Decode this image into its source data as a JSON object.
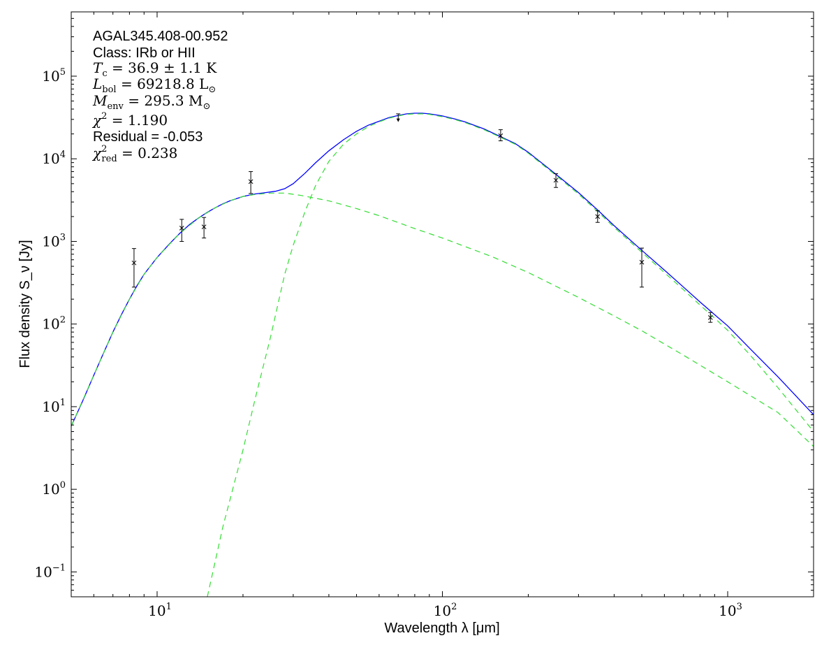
{
  "chart_data": {
    "type": "line",
    "title": "",
    "xlabel": "Wavelength λ [μm]",
    "ylabel": "Flux density S_ν [Jy]",
    "xscale": "log",
    "yscale": "log",
    "xlim": [
      5,
      2000
    ],
    "ylim": [
      0.05,
      600000
    ],
    "grid": false,
    "legend": "none",
    "x_ticks": [
      {
        "value": 10,
        "base": "10",
        "exp": "1"
      },
      {
        "value": 100,
        "base": "10",
        "exp": "2"
      },
      {
        "value": 1000,
        "base": "10",
        "exp": "3"
      }
    ],
    "y_ticks": [
      {
        "value": 0.1,
        "base": "10",
        "exp": "−1"
      },
      {
        "value": 1,
        "base": "10",
        "exp": "0"
      },
      {
        "value": 10,
        "base": "10",
        "exp": "1"
      },
      {
        "value": 100,
        "base": "10",
        "exp": "2"
      },
      {
        "value": 1000,
        "base": "10",
        "exp": "3"
      },
      {
        "value": 10000,
        "base": "10",
        "exp": "4"
      },
      {
        "value": 100000,
        "base": "10",
        "exp": "5"
      }
    ],
    "annotations": {
      "source": "AGAL345.408-00.952",
      "class_line": "Class: IRb or HII",
      "tc": {
        "sym": "T",
        "sub": "c",
        "rest": " = 36.9 ± 1.1 K"
      },
      "lbol": {
        "sym": "L",
        "sub": "bol",
        "rest": " = 69218.8 L",
        "unit_sub": "⊙"
      },
      "menv": {
        "sym": "M",
        "sub": "env",
        "rest": " = 295.3 M",
        "unit_sub": "⊙"
      },
      "chi2": {
        "sym": "χ",
        "sup": "2",
        "rest": " = 1.190"
      },
      "residual": "Residual = -0.053",
      "chi2red": {
        "sym": "χ",
        "sup": "2",
        "sub": "red",
        "rest": " = 0.238"
      }
    },
    "series": [
      {
        "role": "total-fit",
        "color": "#0000ff",
        "style": "solid",
        "points": [
          [
            5,
            5.8
          ],
          [
            5.5,
            12
          ],
          [
            6,
            24
          ],
          [
            6.5,
            45
          ],
          [
            7,
            80
          ],
          [
            7.5,
            130
          ],
          [
            8,
            200
          ],
          [
            8.5,
            290
          ],
          [
            9,
            400
          ],
          [
            10,
            640
          ],
          [
            11,
            920
          ],
          [
            12,
            1250
          ],
          [
            13,
            1600
          ],
          [
            14,
            1930
          ],
          [
            15,
            2250
          ],
          [
            16,
            2560
          ],
          [
            17,
            2850
          ],
          [
            18,
            3100
          ],
          [
            20,
            3500
          ],
          [
            22,
            3750
          ],
          [
            24,
            3900
          ],
          [
            26,
            4050
          ],
          [
            28,
            4350
          ],
          [
            30,
            5000
          ],
          [
            33,
            6700
          ],
          [
            36,
            9000
          ],
          [
            40,
            12500
          ],
          [
            45,
            17000
          ],
          [
            50,
            21500
          ],
          [
            55,
            25500
          ],
          [
            60,
            28500
          ],
          [
            65,
            31500
          ],
          [
            70,
            33500
          ],
          [
            75,
            35000
          ],
          [
            80,
            35600
          ],
          [
            85,
            35600
          ],
          [
            90,
            35000
          ],
          [
            100,
            33000
          ],
          [
            110,
            30500
          ],
          [
            120,
            28000
          ],
          [
            140,
            23000
          ],
          [
            160,
            18500
          ],
          [
            180,
            15300
          ],
          [
            200,
            12000
          ],
          [
            250,
            6500
          ],
          [
            300,
            3900
          ],
          [
            350,
            2400
          ],
          [
            400,
            1550
          ],
          [
            500,
            780
          ],
          [
            600,
            450
          ],
          [
            700,
            280
          ],
          [
            800,
            185
          ],
          [
            900,
            130
          ],
          [
            1000,
            95
          ],
          [
            1200,
            50
          ],
          [
            1500,
            23
          ],
          [
            2000,
            8
          ]
        ]
      },
      {
        "role": "warm-component",
        "color": "#33dd33",
        "style": "dashed",
        "points": [
          [
            5,
            5.8
          ],
          [
            6,
            24
          ],
          [
            7,
            80
          ],
          [
            8,
            200
          ],
          [
            9,
            400
          ],
          [
            10,
            640
          ],
          [
            12,
            1250
          ],
          [
            14,
            1930
          ],
          [
            16,
            2560
          ],
          [
            18,
            3100
          ],
          [
            20,
            3500
          ],
          [
            22,
            3700
          ],
          [
            25,
            3850
          ],
          [
            28,
            3850
          ],
          [
            32,
            3600
          ],
          [
            40,
            3100
          ],
          [
            50,
            2500
          ],
          [
            60,
            2050
          ],
          [
            80,
            1430
          ],
          [
            100,
            1100
          ],
          [
            150,
            650
          ],
          [
            200,
            420
          ],
          [
            300,
            210
          ],
          [
            400,
            125
          ],
          [
            500,
            83
          ],
          [
            700,
            42
          ],
          [
            1000,
            20
          ],
          [
            1500,
            8.5
          ],
          [
            2000,
            3.3
          ]
        ]
      },
      {
        "role": "cold-component",
        "color": "#33dd33",
        "style": "dashed",
        "points": [
          [
            15,
            0.05
          ],
          [
            17,
            0.35
          ],
          [
            20,
            3
          ],
          [
            22,
            12
          ],
          [
            25,
            70
          ],
          [
            28,
            400
          ],
          [
            30,
            900
          ],
          [
            33,
            2300
          ],
          [
            36,
            4800
          ],
          [
            40,
            9300
          ],
          [
            45,
            15000
          ],
          [
            50,
            20000
          ],
          [
            55,
            24500
          ],
          [
            60,
            28000
          ],
          [
            65,
            31000
          ],
          [
            70,
            33000
          ],
          [
            75,
            34500
          ],
          [
            80,
            35000
          ],
          [
            85,
            35000
          ],
          [
            90,
            34500
          ],
          [
            100,
            32300
          ],
          [
            110,
            30000
          ],
          [
            120,
            27500
          ],
          [
            140,
            22500
          ],
          [
            160,
            18200
          ],
          [
            180,
            15000
          ],
          [
            200,
            11700
          ],
          [
            250,
            6300
          ],
          [
            300,
            3750
          ],
          [
            350,
            2300
          ],
          [
            400,
            1480
          ],
          [
            500,
            740
          ],
          [
            600,
            420
          ],
          [
            700,
            260
          ],
          [
            800,
            170
          ],
          [
            900,
            118
          ],
          [
            1000,
            84
          ],
          [
            1200,
            42
          ],
          [
            1500,
            17
          ],
          [
            2000,
            5
          ]
        ]
      }
    ],
    "measurements": [
      {
        "x": 8.3,
        "y": 550,
        "ylo": 280,
        "yhi": 820
      },
      {
        "x": 12.2,
        "y": 1450,
        "ylo": 1000,
        "yhi": 1850
      },
      {
        "x": 14.6,
        "y": 1500,
        "ylo": 1100,
        "yhi": 1950
      },
      {
        "x": 21.3,
        "y": 5300,
        "ylo": 3800,
        "yhi": 7000
      },
      {
        "x": 70,
        "y": 29000,
        "ylo": 29000,
        "yhi": 35000,
        "upper_limit": true
      },
      {
        "x": 160,
        "y": 19000,
        "ylo": 16500,
        "yhi": 22500
      },
      {
        "x": 250,
        "y": 5500,
        "ylo": 4500,
        "yhi": 6600
      },
      {
        "x": 350,
        "y": 2000,
        "ylo": 1700,
        "yhi": 2350
      },
      {
        "x": 500,
        "y": 560,
        "ylo": 280,
        "yhi": 830
      },
      {
        "x": 870,
        "y": 120,
        "ylo": 105,
        "yhi": 138
      }
    ]
  }
}
